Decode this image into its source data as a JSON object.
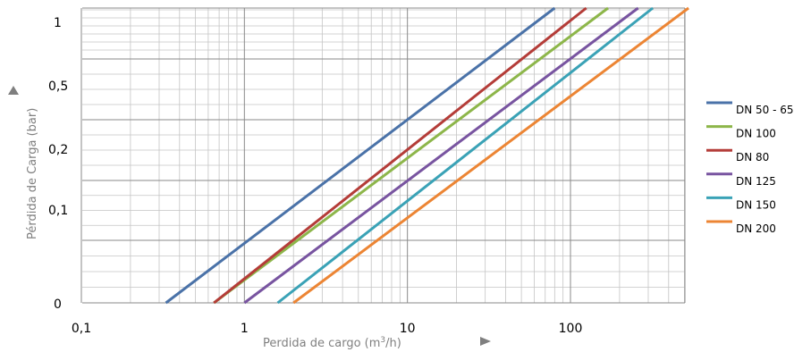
{
  "chart_data": {
    "type": "line",
    "title": "",
    "xlabel": "Perdida de cargo (m³/h)",
    "xlabel_main": "Perdida de cargo (m",
    "xlabel_sup": "3",
    "xlabel_end": "/h)",
    "ylabel": "Pérdida de Carga (bar)",
    "x_scale": "log",
    "xlim": [
      0.1,
      700
    ],
    "x_ticks": [
      {
        "value": 0.1,
        "label": "0,1"
      },
      {
        "value": 1,
        "label": "1"
      },
      {
        "value": 10,
        "label": "10"
      },
      {
        "value": 100,
        "label": "100"
      }
    ],
    "y_ticks": [
      "0",
      "0,1",
      "0,2",
      "0,5",
      "1"
    ],
    "grid": true,
    "legend_position": "right",
    "series": [
      {
        "name": "DN 50 - 65",
        "color": "#4a72a8",
        "x": [
          0.33,
          80
        ]
      },
      {
        "name": "DN 100",
        "color": "#8db64a",
        "x": [
          0.65,
          170
        ]
      },
      {
        "name": "DN 80",
        "color": "#b43c38",
        "x": [
          0.65,
          125
        ]
      },
      {
        "name": "DN 125",
        "color": "#7854a0",
        "x": [
          1.0,
          260
        ]
      },
      {
        "name": "DN 150",
        "color": "#3aa2b6",
        "x": [
          1.6,
          320
        ]
      },
      {
        "name": "DN 200",
        "color": "#ec8534",
        "x": [
          2.0,
          530
        ]
      }
    ]
  }
}
